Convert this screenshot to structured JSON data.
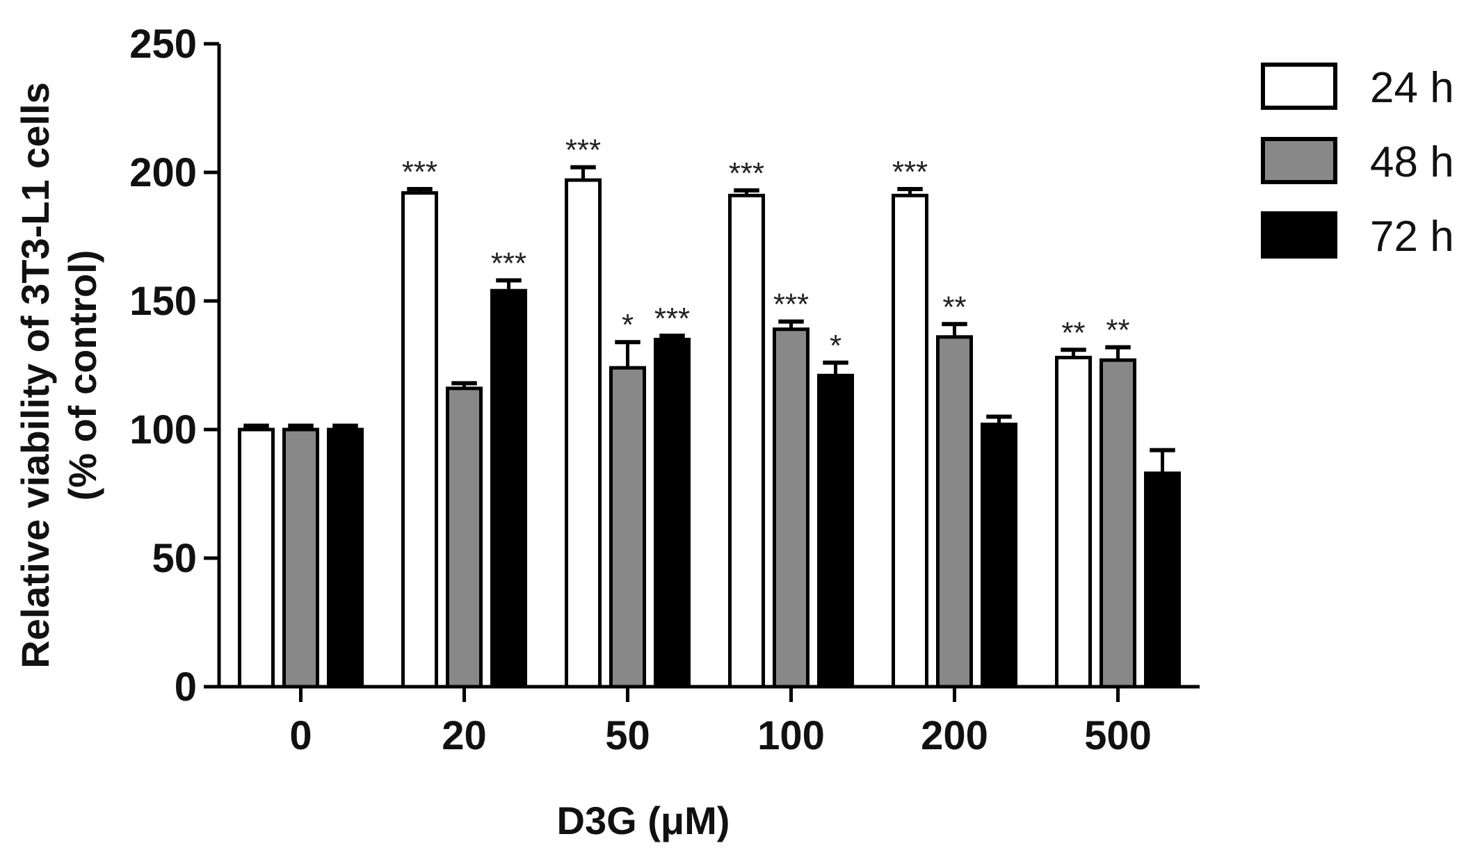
{
  "chart_data": {
    "type": "bar",
    "title": "",
    "xlabel": "D3G (μM)",
    "ylabel_line1": "Relative viability of 3T3-L1 cells",
    "ylabel_line2": "(% of control)",
    "categories": [
      "0",
      "20",
      "50",
      "100",
      "200",
      "500"
    ],
    "ylim": [
      0,
      250
    ],
    "yticks": [
      "0",
      "50",
      "100",
      "150",
      "200",
      "250"
    ],
    "grid": false,
    "legend_position": "top-right",
    "series": [
      {
        "name": "24 h",
        "color": "#ffffff",
        "values": [
          100,
          192,
          197,
          191,
          191,
          128
        ],
        "errors": [
          1.5,
          1.5,
          5,
          2,
          2.5,
          3
        ],
        "significance": [
          "",
          "***",
          "***",
          "***",
          "***",
          "**"
        ]
      },
      {
        "name": "48 h",
        "color": "#888888",
        "values": [
          100,
          116,
          124,
          139,
          136,
          127
        ],
        "errors": [
          1.5,
          2,
          10,
          3,
          5,
          5
        ],
        "significance": [
          "",
          "",
          "*",
          "***",
          "**",
          "**"
        ]
      },
      {
        "name": "72 h",
        "color": "#000000",
        "values": [
          100,
          154,
          135,
          121,
          102,
          83
        ],
        "errors": [
          1.5,
          4,
          1.5,
          5,
          3,
          9
        ],
        "significance": [
          "",
          "***",
          "***",
          "*",
          "",
          ""
        ]
      }
    ]
  }
}
